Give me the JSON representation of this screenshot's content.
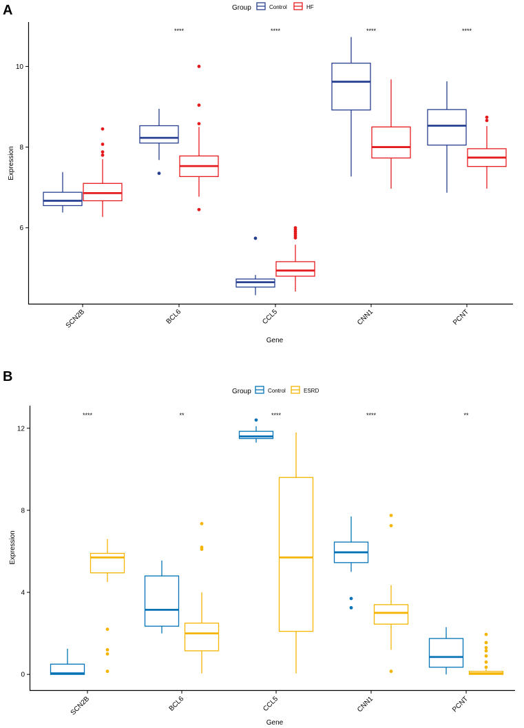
{
  "panels": [
    {
      "label": "A",
      "legend": {
        "title": "Group",
        "entries": [
          "Control",
          "HF"
        ],
        "colors": [
          "#253E90",
          "#E41A1C"
        ],
        "placement": "top-center"
      },
      "xlabel": "Gene",
      "ylabel": "Expression",
      "yticks": [
        "6",
        "8",
        "10"
      ]
    },
    {
      "label": "B",
      "legend": {
        "title": "Group",
        "entries": [
          "Control",
          "ESRD"
        ],
        "colors": [
          "#0072B5",
          "#F4B400"
        ],
        "placement": "top-center"
      },
      "xlabel": "Gene",
      "ylabel": "Expression",
      "yticks": [
        "0",
        "4",
        "8",
        "12"
      ]
    }
  ],
  "chart_data": [
    {
      "type": "boxplot",
      "title": "A",
      "xlabel": "Gene",
      "ylabel": "Expression",
      "ylim": [
        4.1,
        11.1
      ],
      "yticks": [
        6,
        8,
        10
      ],
      "categories": [
        "SCN2B",
        "BCL6",
        "CCL5",
        "CNN1",
        "PCNT"
      ],
      "significance": [
        "",
        "****",
        "****",
        "****",
        "****"
      ],
      "series": [
        {
          "name": "Control",
          "color": "#253E90",
          "boxes": [
            {
              "whisker_low": 6.38,
              "q1": 6.55,
              "median": 6.67,
              "q3": 6.88,
              "whisker_high": 7.38,
              "outliers": []
            },
            {
              "whisker_low": 7.68,
              "q1": 8.1,
              "median": 8.23,
              "q3": 8.53,
              "whisker_high": 8.95,
              "outliers": [
                7.35
              ]
            },
            {
              "whisker_low": 4.33,
              "q1": 4.53,
              "median": 4.65,
              "q3": 4.73,
              "whisker_high": 4.83,
              "outliers": [
                5.74
              ]
            },
            {
              "whisker_low": 7.27,
              "q1": 8.92,
              "median": 9.62,
              "q3": 10.08,
              "whisker_high": 10.73,
              "outliers": []
            },
            {
              "whisker_low": 6.87,
              "q1": 8.05,
              "median": 8.53,
              "q3": 8.93,
              "whisker_high": 9.63,
              "outliers": []
            }
          ]
        },
        {
          "name": "HF",
          "color": "#E41A1C",
          "boxes": [
            {
              "whisker_low": 6.27,
              "q1": 6.67,
              "median": 6.86,
              "q3": 7.1,
              "whisker_high": 7.7,
              "outliers": [
                7.8,
                7.88,
                8.07,
                8.45
              ]
            },
            {
              "whisker_low": 6.77,
              "q1": 7.27,
              "median": 7.53,
              "q3": 7.78,
              "whisker_high": 8.5,
              "outliers": [
                6.45,
                8.58,
                9.04,
                10.0
              ]
            },
            {
              "whisker_low": 4.42,
              "q1": 4.8,
              "median": 4.94,
              "q3": 5.16,
              "whisker_high": 5.58,
              "outliers": [
                5.75,
                5.8,
                5.85,
                5.9,
                5.95,
                6.0
              ]
            },
            {
              "whisker_low": 6.97,
              "q1": 7.73,
              "median": 8.0,
              "q3": 8.5,
              "whisker_high": 9.68,
              "outliers": []
            },
            {
              "whisker_low": 6.97,
              "q1": 7.52,
              "median": 7.74,
              "q3": 7.96,
              "whisker_high": 8.52,
              "outliers": [
                8.66,
                8.74
              ]
            }
          ]
        }
      ]
    },
    {
      "type": "boxplot",
      "title": "B",
      "xlabel": "Gene",
      "ylabel": "Expression",
      "ylim": [
        -0.8,
        13.1
      ],
      "yticks": [
        0,
        4,
        8,
        12
      ],
      "categories": [
        "SCN2B",
        "BCL6",
        "CCL5",
        "CNN1",
        "PCNT"
      ],
      "significance": [
        "****",
        "**",
        "****",
        "****",
        "**"
      ],
      "series": [
        {
          "name": "Control",
          "color": "#0072B5",
          "boxes": [
            {
              "whisker_low": 0.0,
              "q1": 0.0,
              "median": 0.05,
              "q3": 0.5,
              "whisker_high": 1.25,
              "outliers": []
            },
            {
              "whisker_low": 2.0,
              "q1": 2.35,
              "median": 3.15,
              "q3": 4.8,
              "whisker_high": 5.55,
              "outliers": []
            },
            {
              "whisker_low": 11.3,
              "q1": 11.5,
              "median": 11.6,
              "q3": 11.85,
              "whisker_high": 12.1,
              "outliers": [
                12.4
              ]
            },
            {
              "whisker_low": 5.0,
              "q1": 5.45,
              "median": 5.95,
              "q3": 6.45,
              "whisker_high": 7.7,
              "outliers": [
                3.25,
                3.7
              ]
            },
            {
              "whisker_low": 0.0,
              "q1": 0.35,
              "median": 0.85,
              "q3": 1.75,
              "whisker_high": 2.3,
              "outliers": []
            }
          ]
        },
        {
          "name": "ESRD",
          "color": "#F4B400",
          "boxes": [
            {
              "whisker_low": 4.5,
              "q1": 4.95,
              "median": 5.7,
              "q3": 5.9,
              "whisker_high": 6.6,
              "outliers": [
                0.15,
                1.0,
                1.2,
                2.2
              ]
            },
            {
              "whisker_low": 0.05,
              "q1": 1.15,
              "median": 2.0,
              "q3": 2.5,
              "whisker_high": 4.0,
              "outliers": [
                6.1,
                6.2,
                7.35
              ]
            },
            {
              "whisker_low": 0.05,
              "q1": 2.1,
              "median": 5.7,
              "q3": 9.6,
              "whisker_high": 11.8,
              "outliers": []
            },
            {
              "whisker_low": 1.2,
              "q1": 2.45,
              "median": 3.0,
              "q3": 3.4,
              "whisker_high": 4.35,
              "outliers": [
                0.15,
                7.25,
                7.75
              ]
            },
            {
              "whisker_low": 0.0,
              "q1": 0.0,
              "median": 0.05,
              "q3": 0.15,
              "whisker_high": 0.25,
              "outliers": [
                0.35,
                0.6,
                0.9,
                1.15,
                1.3,
                1.55,
                1.95
              ]
            }
          ]
        }
      ]
    }
  ]
}
